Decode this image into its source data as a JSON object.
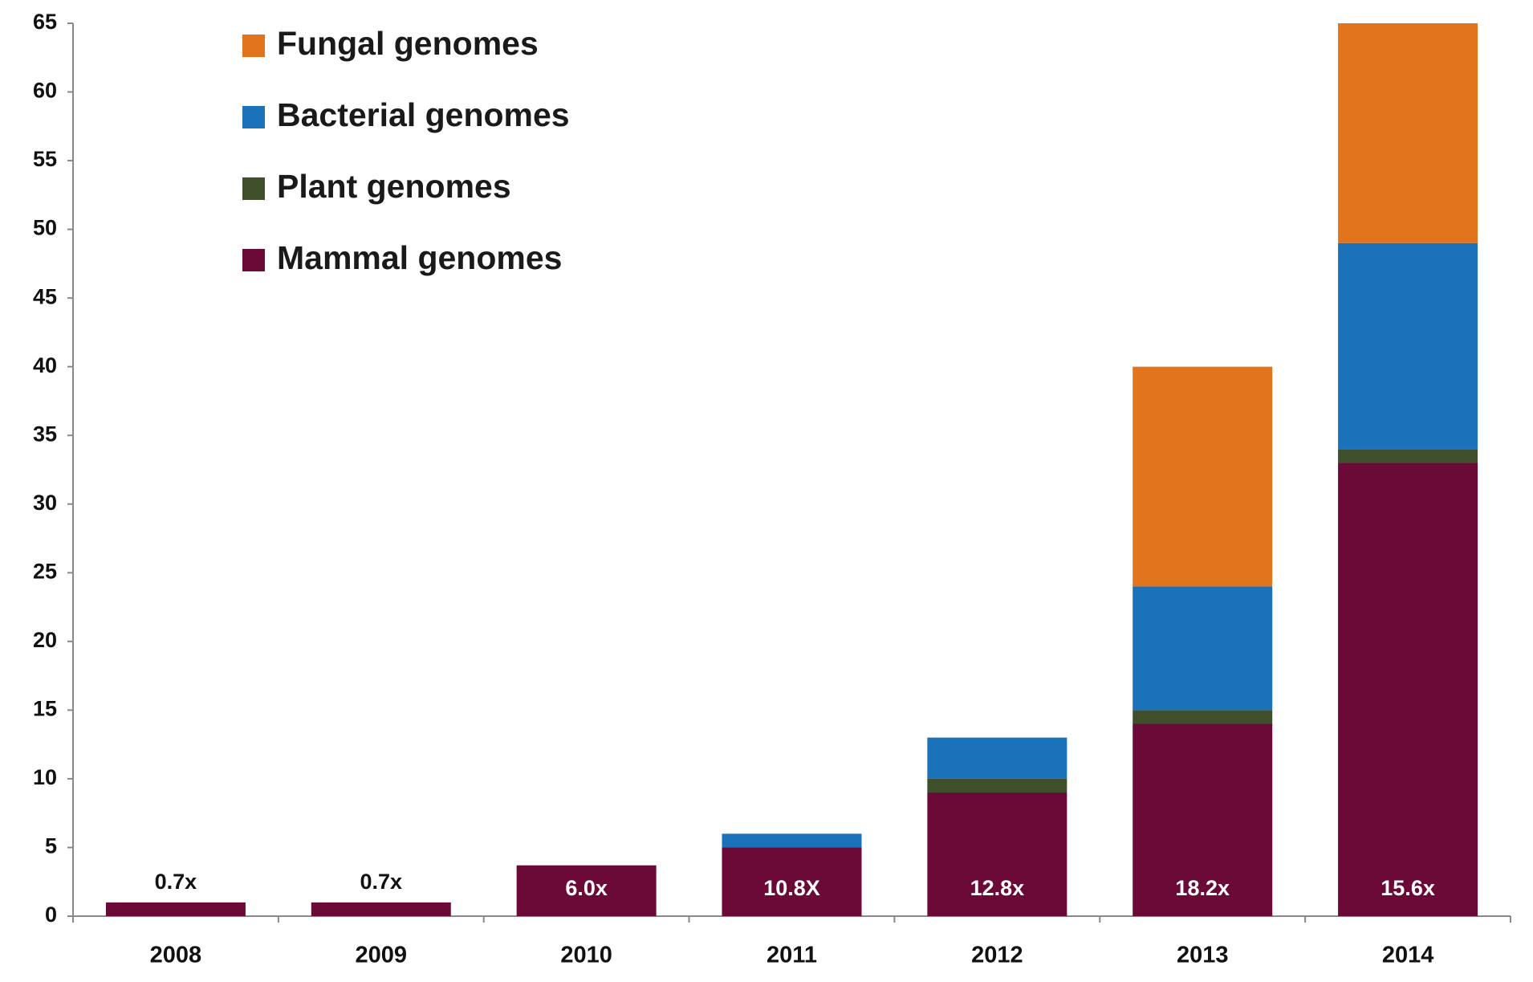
{
  "chart_data": {
    "type": "stacked_bar",
    "categories": [
      "2008",
      "2009",
      "2010",
      "2011",
      "2012",
      "2013",
      "2014"
    ],
    "series": [
      {
        "name": "Mammal genomes",
        "color": "#6b0a37",
        "values": [
          1,
          1,
          3.7,
          5,
          9,
          14,
          33
        ]
      },
      {
        "name": "Plant genomes",
        "color": "#3f4f2b",
        "values": [
          0,
          0,
          0,
          0,
          1,
          1,
          1
        ]
      },
      {
        "name": "Bacterial genomes",
        "color": "#1a72ba",
        "values": [
          0,
          0,
          0,
          1,
          3,
          9,
          15
        ]
      },
      {
        "name": "Fungal genomes",
        "color": "#e3741e",
        "values": [
          0,
          0,
          0,
          0,
          0,
          16,
          16
        ]
      }
    ],
    "annotations": [
      "0.7x",
      "0.7x",
      "6.0x",
      "10.8X",
      "12.8x",
      "18.2x",
      "15.6x"
    ],
    "ylim": [
      0,
      65
    ],
    "yticks": [
      0,
      5,
      10,
      15,
      20,
      25,
      30,
      35,
      40,
      45,
      50,
      55,
      60,
      65
    ],
    "grid": false
  }
}
